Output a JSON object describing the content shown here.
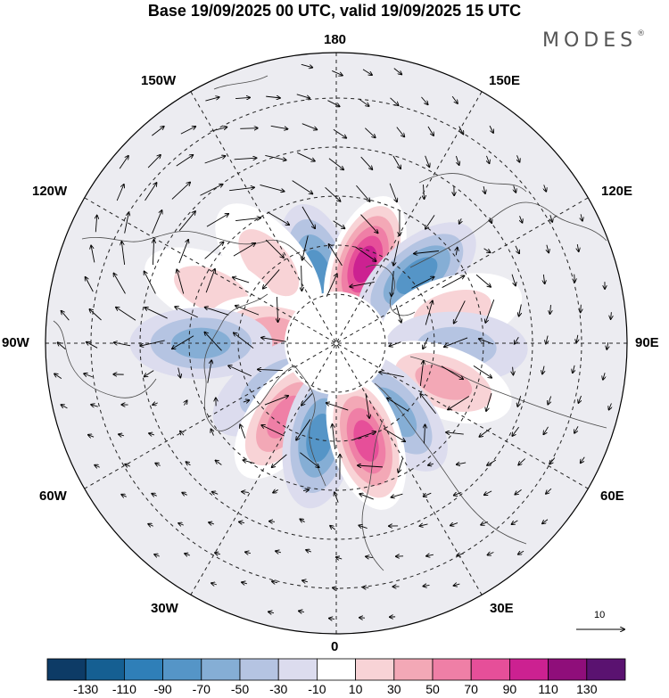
{
  "title": "Base 19/09/2025 00 UTC, valid 19/09/2025 15 UTC",
  "brand": "MODES",
  "brand_mark": "®",
  "longitude_labels": {
    "top": "180",
    "bottom": "0",
    "left": "90W",
    "right": "90E",
    "nw_upper": "150W",
    "nw_lower": "120W",
    "ne_upper": "150E",
    "ne_lower": "120E",
    "sw_upper": "60W",
    "sw_lower": "30W",
    "se_upper": "60E",
    "se_lower": "30E"
  },
  "reference_vector": {
    "label": "10"
  },
  "colorbar": {
    "colors": [
      "#0d3b66",
      "#155f92",
      "#2f7fb8",
      "#5595c7",
      "#85aed5",
      "#b5c4e2",
      "#dcdcee",
      "#ffffff",
      "#f8d3d6",
      "#f3a8b6",
      "#ef7fa6",
      "#e64f99",
      "#cc2191",
      "#8f0e7a",
      "#5a1270"
    ],
    "ticks": [
      "-130",
      "-110",
      "-90",
      "-70",
      "-50",
      "-30",
      "-10",
      "10",
      "30",
      "50",
      "70",
      "90",
      "110",
      "130"
    ]
  },
  "anomaly_centers": [
    {
      "sign": "neg",
      "level": -70,
      "lat": 66,
      "lon": -165
    },
    {
      "sign": "pos",
      "level": 110,
      "lat": 62,
      "lon": 160
    },
    {
      "sign": "pos",
      "level": 30,
      "lat": 55,
      "lon": -140
    },
    {
      "sign": "neg",
      "level": -70,
      "lat": 55,
      "lon": 130
    },
    {
      "sign": "pos",
      "level": 30,
      "lat": 45,
      "lon": -113
    },
    {
      "sign": "pos",
      "level": 30,
      "lat": 50,
      "lon": 105
    },
    {
      "sign": "pos",
      "level": 50,
      "lat": 70,
      "lon": -100
    },
    {
      "sign": "neg",
      "level": -30,
      "lat": 50,
      "lon": 88
    },
    {
      "sign": "neg",
      "level": -50,
      "lat": 45,
      "lon": -90
    },
    {
      "sign": "pos",
      "level": 50,
      "lat": 52,
      "lon": 70
    },
    {
      "sign": "neg",
      "level": -30,
      "lat": 65,
      "lon": -55
    },
    {
      "sign": "pos",
      "level": 70,
      "lat": 60,
      "lon": -35
    },
    {
      "sign": "neg",
      "level": -50,
      "lat": 60,
      "lon": 40
    },
    {
      "sign": "neg",
      "level": -70,
      "lat": 58,
      "lon": -10
    },
    {
      "sign": "pos",
      "level": 90,
      "lat": 56,
      "lon": 17
    }
  ]
}
